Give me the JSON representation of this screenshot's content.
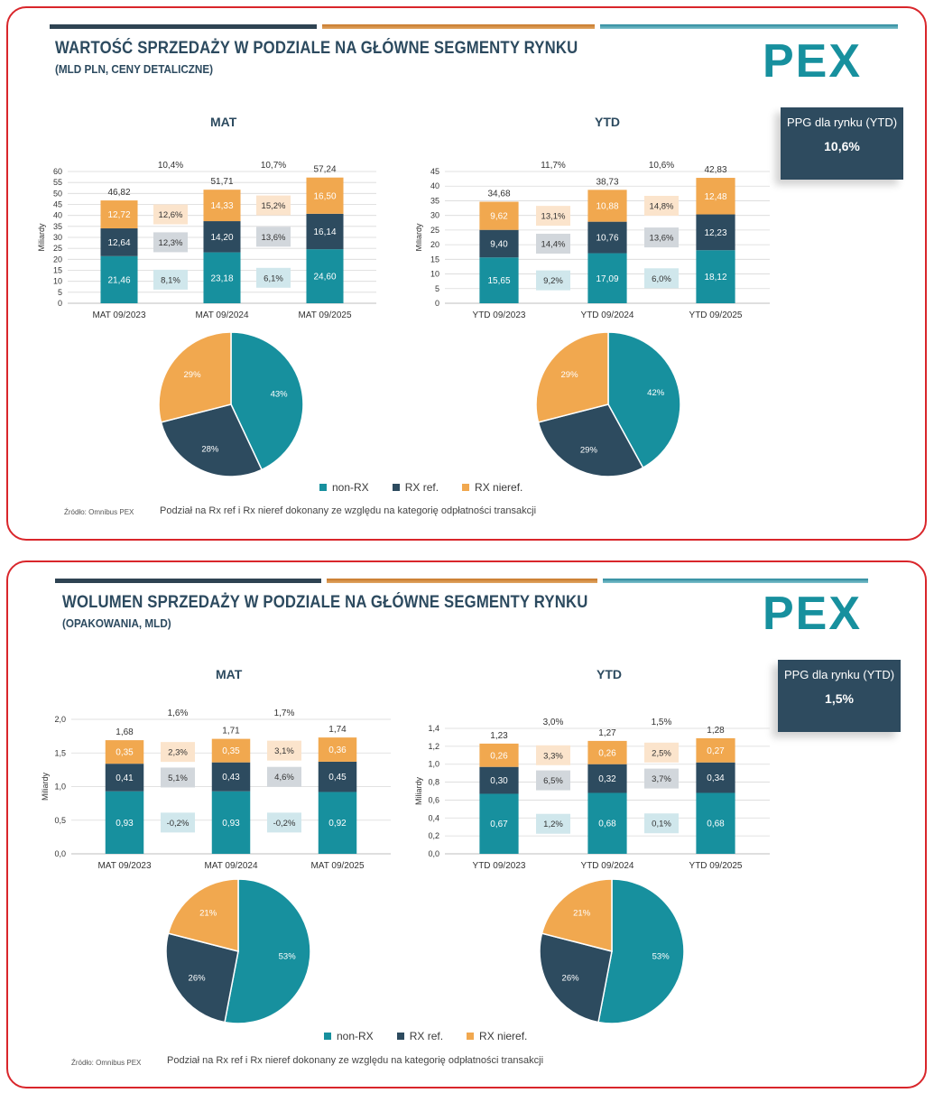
{
  "colors": {
    "nonrx": "#17909e",
    "rxref": "#2d4b5f",
    "rxnieref": "#f1a84f",
    "frame": "#d9262b",
    "stripe_dark": "#2e4352",
    "stripe_orange": "#c8782a",
    "stripe_teal": "#2a8a9c",
    "box_orange": "#fbe4cc",
    "box_gray": "#d2d7dc",
    "box_teal": "#d0e7ec"
  },
  "legend": {
    "items": [
      {
        "label": "non-RX",
        "color": "#17909e"
      },
      {
        "label": "RX ref.",
        "color": "#2d4b5f"
      },
      {
        "label": "RX nieref.",
        "color": "#f1a84f"
      }
    ]
  },
  "logo_text": "PEX",
  "panels": [
    {
      "title": "WARTOŚĆ SPRZEDAŻY W PODZIALE NA GŁÓWNE SEGMENTY RYNKU",
      "subtitle": "(MLD PLN, CENY DETALICZNE)",
      "ppg": {
        "label": "PPG dla rynku (YTD)",
        "value": "10,6%"
      },
      "source": "Źródło: Omnibus PEX",
      "note": "Podział na Rx ref i Rx nieref dokonany ze względu na kategorię odpłatności transakcji",
      "charts": [
        {
          "chart_title": "MAT",
          "chart_data": {
            "type": "bar",
            "stacked": true,
            "ylabel": "Miliardy",
            "ylim": [
              0,
              60
            ],
            "yticks": [
              "0",
              "5",
              "10",
              "15",
              "20",
              "25",
              "30",
              "35",
              "40",
              "45",
              "50",
              "55",
              "60"
            ],
            "ytick_values": [
              0,
              5,
              10,
              15,
              20,
              25,
              30,
              35,
              40,
              45,
              50,
              55,
              60
            ],
            "categories": [
              "MAT 09/2023",
              "MAT 09/2024",
              "MAT 09/2025"
            ],
            "series": [
              {
                "name": "non-RX",
                "values": [
                  21.46,
                  23.18,
                  24.6
                ],
                "labels": [
                  "21,46",
                  "23,18",
                  "24,60"
                ]
              },
              {
                "name": "RX ref.",
                "values": [
                  12.64,
                  14.2,
                  16.14
                ],
                "labels": [
                  "12,64",
                  "14,20",
                  "16,14"
                ]
              },
              {
                "name": "RX nieref.",
                "values": [
                  12.72,
                  14.33,
                  16.5
                ],
                "labels": [
                  "12,72",
                  "14,33",
                  "16,50"
                ]
              }
            ],
            "totals": [
              "46,82",
              "51,71",
              "57,24"
            ],
            "growth": [
              {
                "total": "10,4%",
                "rxnieref": "12,6%",
                "rxref": "12,3%",
                "nonrx": "8,1%"
              },
              {
                "total": "10,7%",
                "rxnieref": "15,2%",
                "rxref": "13,6%",
                "nonrx": "6,1%"
              }
            ]
          },
          "pie": {
            "type": "pie",
            "values": [
              43,
              28,
              29
            ],
            "labels": [
              "43%",
              "28%",
              "29%"
            ]
          }
        },
        {
          "chart_title": "YTD",
          "chart_data": {
            "type": "bar",
            "stacked": true,
            "ylabel": "Miliardy",
            "ylim": [
              0,
              45
            ],
            "yticks": [
              "0",
              "5",
              "10",
              "15",
              "20",
              "25",
              "30",
              "35",
              "40",
              "45"
            ],
            "ytick_values": [
              0,
              5,
              10,
              15,
              20,
              25,
              30,
              35,
              40,
              45
            ],
            "categories": [
              "YTD 09/2023",
              "YTD 09/2024",
              "YTD 09/2025"
            ],
            "series": [
              {
                "name": "non-RX",
                "values": [
                  15.65,
                  17.09,
                  18.12
                ],
                "labels": [
                  "15,65",
                  "17,09",
                  "18,12"
                ]
              },
              {
                "name": "RX ref.",
                "values": [
                  9.4,
                  10.76,
                  12.23
                ],
                "labels": [
                  "9,40",
                  "10,76",
                  "12,23"
                ]
              },
              {
                "name": "RX nieref.",
                "values": [
                  9.62,
                  10.88,
                  12.48
                ],
                "labels": [
                  "9,62",
                  "10,88",
                  "12,48"
                ]
              }
            ],
            "totals": [
              "34,68",
              "38,73",
              "42,83"
            ],
            "growth": [
              {
                "total": "11,7%",
                "rxnieref": "13,1%",
                "rxref": "14,4%",
                "nonrx": "9,2%"
              },
              {
                "total": "10,6%",
                "rxnieref": "14,8%",
                "rxref": "13,6%",
                "nonrx": "6,0%"
              }
            ]
          },
          "pie": {
            "type": "pie",
            "values": [
              42,
              29,
              29
            ],
            "labels": [
              "42%",
              "29%",
              "29%"
            ]
          }
        }
      ]
    },
    {
      "title": "WOLUMEN SPRZEDAŻY W PODZIALE NA GŁÓWNE SEGMENTY RYNKU",
      "subtitle": "(OPAKOWANIA, MLD)",
      "ppg": {
        "label": "PPG dla rynku (YTD)",
        "value": "1,5%"
      },
      "source": "Źródło: Omnibus PEX",
      "note": "Podział na Rx ref i Rx nieref dokonany ze względu na kategorię odpłatności transakcji",
      "charts": [
        {
          "chart_title": "MAT",
          "chart_data": {
            "type": "bar",
            "stacked": true,
            "ylabel": "Miliardy",
            "ylim": [
              0,
              2.0
            ],
            "yticks": [
              "0,0",
              "0,5",
              "1,0",
              "1,5",
              "2,0"
            ],
            "ytick_values": [
              0,
              0.5,
              1.0,
              1.5,
              2.0
            ],
            "categories": [
              "MAT 09/2023",
              "MAT 09/2024",
              "MAT 09/2025"
            ],
            "series": [
              {
                "name": "non-RX",
                "values": [
                  0.93,
                  0.93,
                  0.92
                ],
                "labels": [
                  "0,93",
                  "0,93",
                  "0,92"
                ]
              },
              {
                "name": "RX ref.",
                "values": [
                  0.41,
                  0.43,
                  0.45
                ],
                "labels": [
                  "0,41",
                  "0,43",
                  "0,45"
                ]
              },
              {
                "name": "RX nieref.",
                "values": [
                  0.35,
                  0.35,
                  0.36
                ],
                "labels": [
                  "0,35",
                  "0,35",
                  "0,36"
                ]
              }
            ],
            "totals": [
              "1,68",
              "1,71",
              "1,74"
            ],
            "growth": [
              {
                "total": "1,6%",
                "rxnieref": "2,3%",
                "rxref": "5,1%",
                "nonrx": "-0,2%"
              },
              {
                "total": "1,7%",
                "rxnieref": "3,1%",
                "rxref": "4,6%",
                "nonrx": "-0,2%"
              }
            ]
          },
          "pie": {
            "type": "pie",
            "values": [
              53,
              26,
              21
            ],
            "labels": [
              "53%",
              "26%",
              "21%"
            ]
          }
        },
        {
          "chart_title": "YTD",
          "chart_data": {
            "type": "bar",
            "stacked": true,
            "ylabel": "Miliardy",
            "ylim": [
              0,
              1.4
            ],
            "yticks": [
              "0,0",
              "0,2",
              "0,4",
              "0,6",
              "0,8",
              "1,0",
              "1,2",
              "1,4"
            ],
            "ytick_values": [
              0,
              0.2,
              0.4,
              0.6,
              0.8,
              1.0,
              1.2,
              1.4
            ],
            "categories": [
              "YTD 09/2023",
              "YTD 09/2024",
              "YTD 09/2025"
            ],
            "series": [
              {
                "name": "non-RX",
                "values": [
                  0.67,
                  0.68,
                  0.68
                ],
                "labels": [
                  "0,67",
                  "0,68",
                  "0,68"
                ]
              },
              {
                "name": "RX ref.",
                "values": [
                  0.3,
                  0.32,
                  0.34
                ],
                "labels": [
                  "0,30",
                  "0,32",
                  "0,34"
                ]
              },
              {
                "name": "RX nieref.",
                "values": [
                  0.26,
                  0.26,
                  0.27
                ],
                "labels": [
                  "0,26",
                  "0,26",
                  "0,27"
                ]
              }
            ],
            "totals": [
              "1,23",
              "1,27",
              "1,28"
            ],
            "growth": [
              {
                "total": "3,0%",
                "rxnieref": "3,3%",
                "rxref": "6,5%",
                "nonrx": "1,2%"
              },
              {
                "total": "1,5%",
                "rxnieref": "2,5%",
                "rxref": "3,7%",
                "nonrx": "0,1%"
              }
            ]
          },
          "pie": {
            "type": "pie",
            "values": [
              53,
              26,
              21
            ],
            "labels": [
              "53%",
              "26%",
              "21%"
            ]
          }
        }
      ]
    }
  ]
}
